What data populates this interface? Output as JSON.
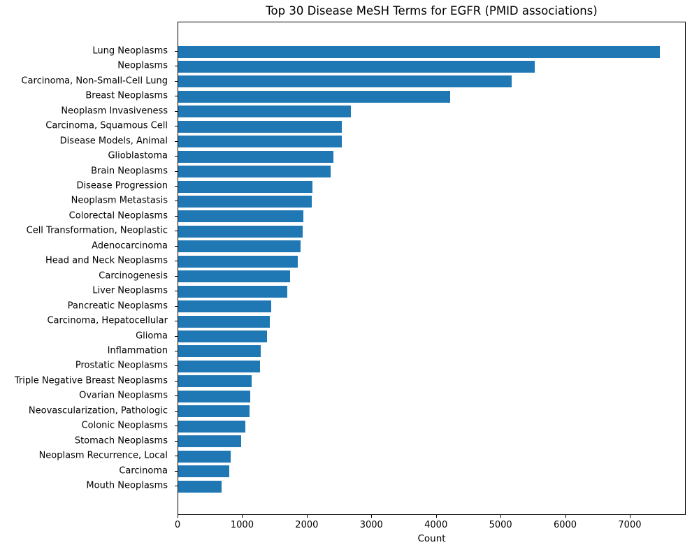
{
  "chart_data": {
    "type": "bar",
    "orientation": "horizontal",
    "title": "Top 30 Disease MeSH Terms for EGFR (PMID associations)",
    "xlabel": "Count",
    "ylabel": "",
    "bar_color": "#1f77b4",
    "grid": false,
    "legend_position": "none",
    "xlim": [
      0,
      7866
    ],
    "xticks": [
      0,
      1000,
      2000,
      3000,
      4000,
      5000,
      6000,
      7000
    ],
    "categories": [
      "Lung Neoplasms",
      "Neoplasms",
      "Carcinoma, Non-Small-Cell Lung",
      "Breast Neoplasms",
      "Neoplasm Invasiveness",
      "Carcinoma, Squamous Cell",
      "Disease Models, Animal",
      "Glioblastoma",
      "Brain Neoplasms",
      "Disease Progression",
      "Neoplasm Metastasis",
      "Colorectal Neoplasms",
      "Cell Transformation, Neoplastic",
      "Adenocarcinoma",
      "Head and Neck Neoplasms",
      "Carcinogenesis",
      "Liver Neoplasms",
      "Pancreatic Neoplasms",
      "Carcinoma, Hepatocellular",
      "Glioma",
      "Inflammation",
      "Prostatic Neoplasms",
      "Triple Negative Breast Neoplasms",
      "Ovarian Neoplasms",
      "Neovascularization, Pathologic",
      "Colonic Neoplasms",
      "Stomach Neoplasms",
      "Neoplasm Recurrence, Local",
      "Carcinoma",
      "Mouth Neoplasms"
    ],
    "values": [
      7480,
      5530,
      5170,
      4225,
      2680,
      2540,
      2535,
      2410,
      2365,
      2085,
      2070,
      1940,
      1930,
      1895,
      1860,
      1735,
      1690,
      1445,
      1420,
      1375,
      1275,
      1270,
      1140,
      1115,
      1110,
      1040,
      980,
      815,
      790,
      672
    ]
  }
}
